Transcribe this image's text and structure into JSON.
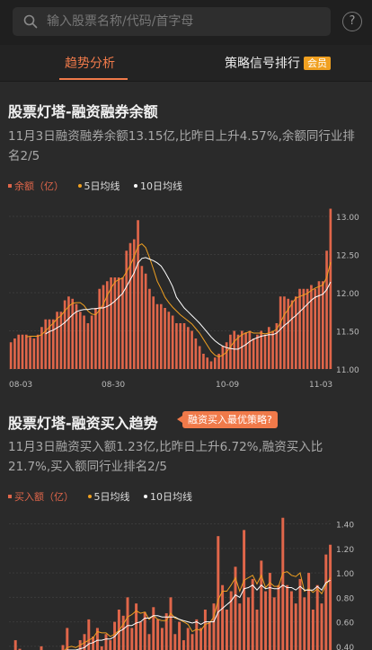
{
  "search": {
    "placeholder": "输入股票名称/代码/首字母"
  },
  "help_label": "?",
  "tabs": [
    {
      "label": "趋势分析",
      "active": true
    },
    {
      "label": "策略信号排行",
      "badge": "会员"
    }
  ],
  "card1": {
    "title": "股票灯塔-融资融券余额",
    "desc": "11月3日融资融券余额13.15亿,比昨日上升4.57%,余额同行业排名2/5",
    "legend": [
      "余额（亿）",
      "5日均线",
      "10日均线"
    ]
  },
  "card2": {
    "title": "股票灯塔-融资买入趋势",
    "strategy_label": "融资买入最优策略?",
    "desc": "11月3日融资买入额1.23亿,比昨日上升6.72%,融资买入比21.7%,买入额同行业排名2/5",
    "legend": [
      "买入额（亿）",
      "5日均线",
      "10日均线"
    ]
  },
  "colors": {
    "bar": "#e0664a",
    "ma5": "#f0a020",
    "ma10": "#ffffff",
    "accent": "#f07a4a"
  },
  "chart_data": [
    {
      "type": "bar",
      "title": "",
      "series": [
        {
          "name": "余额（亿）",
          "values": [
            11.35,
            11.4,
            11.45,
            11.45,
            11.45,
            11.42,
            11.4,
            11.45,
            11.55,
            11.65,
            11.65,
            11.65,
            11.75,
            11.75,
            11.9,
            11.95,
            11.92,
            11.85,
            11.75,
            11.7,
            11.6,
            11.7,
            11.8,
            12.05,
            12.1,
            12.15,
            12.2,
            12.2,
            12.2,
            12.2,
            12.55,
            12.65,
            12.7,
            12.95,
            12.35,
            12.25,
            12.05,
            11.95,
            11.85,
            11.85,
            11.8,
            11.75,
            11.7,
            11.6,
            11.6,
            11.6,
            11.55,
            11.5,
            11.4,
            11.3,
            11.2,
            11.15,
            11.1,
            11.15,
            11.2,
            11.3,
            11.35,
            11.45,
            11.5,
            11.45,
            11.5,
            11.48,
            11.5,
            11.4,
            11.45,
            11.5,
            11.45,
            11.55,
            11.5,
            11.6,
            11.95,
            11.95,
            11.92,
            11.9,
            11.95,
            12.05,
            12.05,
            12.05,
            12.1,
            12.05,
            12.15,
            12.15,
            12.55,
            13.1
          ]
        },
        {
          "name": "5日均线",
          "values": [
            null,
            null,
            null,
            null,
            11.42,
            11.43,
            11.43,
            11.43,
            11.45,
            11.5,
            11.55,
            11.6,
            11.66,
            11.7,
            11.76,
            11.82,
            11.86,
            11.87,
            11.87,
            11.83,
            11.76,
            11.72,
            11.71,
            11.77,
            11.85,
            11.96,
            12.06,
            12.14,
            12.17,
            12.19,
            12.27,
            12.36,
            12.47,
            12.61,
            12.64,
            12.59,
            12.46,
            12.31,
            12.15,
            12.05,
            11.94,
            11.87,
            11.81,
            11.76,
            11.71,
            11.67,
            11.63,
            11.59,
            11.53,
            11.47,
            11.39,
            11.31,
            11.23,
            11.18,
            11.16,
            11.18,
            11.22,
            11.29,
            11.36,
            11.41,
            11.45,
            11.47,
            11.49,
            11.47,
            11.47,
            11.47,
            11.46,
            11.47,
            11.49,
            11.52,
            11.61,
            11.71,
            11.78,
            11.86,
            11.93,
            11.95,
            11.97,
            11.99,
            12.03,
            12.06,
            12.08,
            12.1,
            12.2,
            12.4
          ]
        },
        {
          "name": "10日均线",
          "values": [
            null,
            null,
            null,
            null,
            null,
            null,
            null,
            null,
            null,
            11.46,
            11.49,
            11.51,
            11.54,
            11.57,
            11.61,
            11.66,
            11.71,
            11.75,
            11.77,
            11.78,
            11.78,
            11.79,
            11.79,
            11.8,
            11.8,
            11.82,
            11.85,
            11.89,
            11.94,
            11.99,
            12.08,
            12.17,
            12.26,
            12.39,
            12.45,
            12.46,
            12.44,
            12.42,
            12.39,
            12.35,
            12.27,
            12.18,
            12.08,
            11.94,
            11.87,
            11.8,
            11.75,
            11.7,
            11.65,
            11.6,
            11.54,
            11.48,
            11.42,
            11.37,
            11.33,
            11.3,
            11.28,
            11.27,
            11.26,
            11.26,
            11.29,
            11.32,
            11.36,
            11.39,
            11.41,
            11.43,
            11.44,
            11.45,
            11.45,
            11.47,
            11.52,
            11.57,
            11.61,
            11.66,
            11.7,
            11.75,
            11.8,
            11.85,
            11.9,
            11.94,
            11.96,
            11.98,
            12.04,
            12.14
          ]
        }
      ],
      "x_ticks": [
        "08-03",
        "08-30",
        "10-09",
        "11-03"
      ],
      "y_ticks": [
        11.0,
        11.5,
        12.0,
        12.5,
        13.0
      ],
      "ylim": [
        11.0,
        13.2
      ]
    },
    {
      "type": "bar",
      "title": "",
      "series": [
        {
          "name": "买入额（亿）",
          "values": [
            0.32,
            0.45,
            0.38,
            0.28,
            0.36,
            0.3,
            0.35,
            0.4,
            0.34,
            0.28,
            0.37,
            0.33,
            0.41,
            0.55,
            0.36,
            0.3,
            0.45,
            0.5,
            0.62,
            0.48,
            0.55,
            0.4,
            0.5,
            0.45,
            0.6,
            0.7,
            0.65,
            0.8,
            0.55,
            0.75,
            0.6,
            0.68,
            0.5,
            0.72,
            0.62,
            0.55,
            0.67,
            0.8,
            0.5,
            0.6,
            0.45,
            0.55,
            0.5,
            0.62,
            0.55,
            0.7,
            0.6,
            0.75,
            1.3,
            0.9,
            0.7,
            0.85,
            1.05,
            0.75,
            1.35,
            0.8,
            0.95,
            0.7,
            1.1,
            0.85,
            1.0,
            0.8,
            0.9,
            1.45,
            0.9,
            0.85,
            0.75,
            0.95,
            0.8,
            1.0,
            0.7,
            0.9,
            0.75,
            1.15,
            1.23
          ]
        },
        {
          "name": "5日均线",
          "values": [
            null,
            null,
            null,
            null,
            0.36,
            0.35,
            0.33,
            0.34,
            0.35,
            0.33,
            0.35,
            0.34,
            0.35,
            0.39,
            0.4,
            0.39,
            0.41,
            0.43,
            0.45,
            0.47,
            0.52,
            0.51,
            0.51,
            0.48,
            0.5,
            0.53,
            0.58,
            0.64,
            0.66,
            0.69,
            0.67,
            0.68,
            0.62,
            0.65,
            0.62,
            0.61,
            0.61,
            0.67,
            0.63,
            0.62,
            0.6,
            0.58,
            0.52,
            0.54,
            0.53,
            0.58,
            0.59,
            0.64,
            0.78,
            0.85,
            0.85,
            0.9,
            0.96,
            0.85,
            0.94,
            0.96,
            0.98,
            0.91,
            0.98,
            0.88,
            0.92,
            0.89,
            0.89,
            1.0,
            1.01,
            0.98,
            0.97,
            1.0,
            0.85,
            0.87,
            0.84,
            0.87,
            0.83,
            0.9,
            0.96
          ]
        },
        {
          "name": "10日均线",
          "values": [
            null,
            null,
            null,
            null,
            null,
            null,
            null,
            null,
            null,
            0.35,
            0.35,
            0.34,
            0.34,
            0.37,
            0.37,
            0.37,
            0.38,
            0.39,
            0.42,
            0.43,
            0.45,
            0.45,
            0.46,
            0.46,
            0.48,
            0.52,
            0.54,
            0.57,
            0.57,
            0.59,
            0.6,
            0.63,
            0.63,
            0.65,
            0.65,
            0.64,
            0.64,
            0.64,
            0.64,
            0.62,
            0.61,
            0.6,
            0.59,
            0.6,
            0.58,
            0.6,
            0.6,
            0.6,
            0.68,
            0.71,
            0.74,
            0.77,
            0.82,
            0.8,
            0.87,
            0.88,
            0.9,
            0.86,
            0.9,
            0.87,
            0.88,
            0.87,
            0.87,
            0.9,
            0.88,
            0.88,
            0.86,
            0.89,
            0.86,
            0.86,
            0.86,
            0.89,
            0.86,
            0.92,
            0.94
          ]
        }
      ],
      "y_ticks": [
        0.4,
        0.6,
        0.8,
        1.0,
        1.2,
        1.4
      ],
      "ylim": [
        0.37,
        1.47
      ]
    }
  ]
}
